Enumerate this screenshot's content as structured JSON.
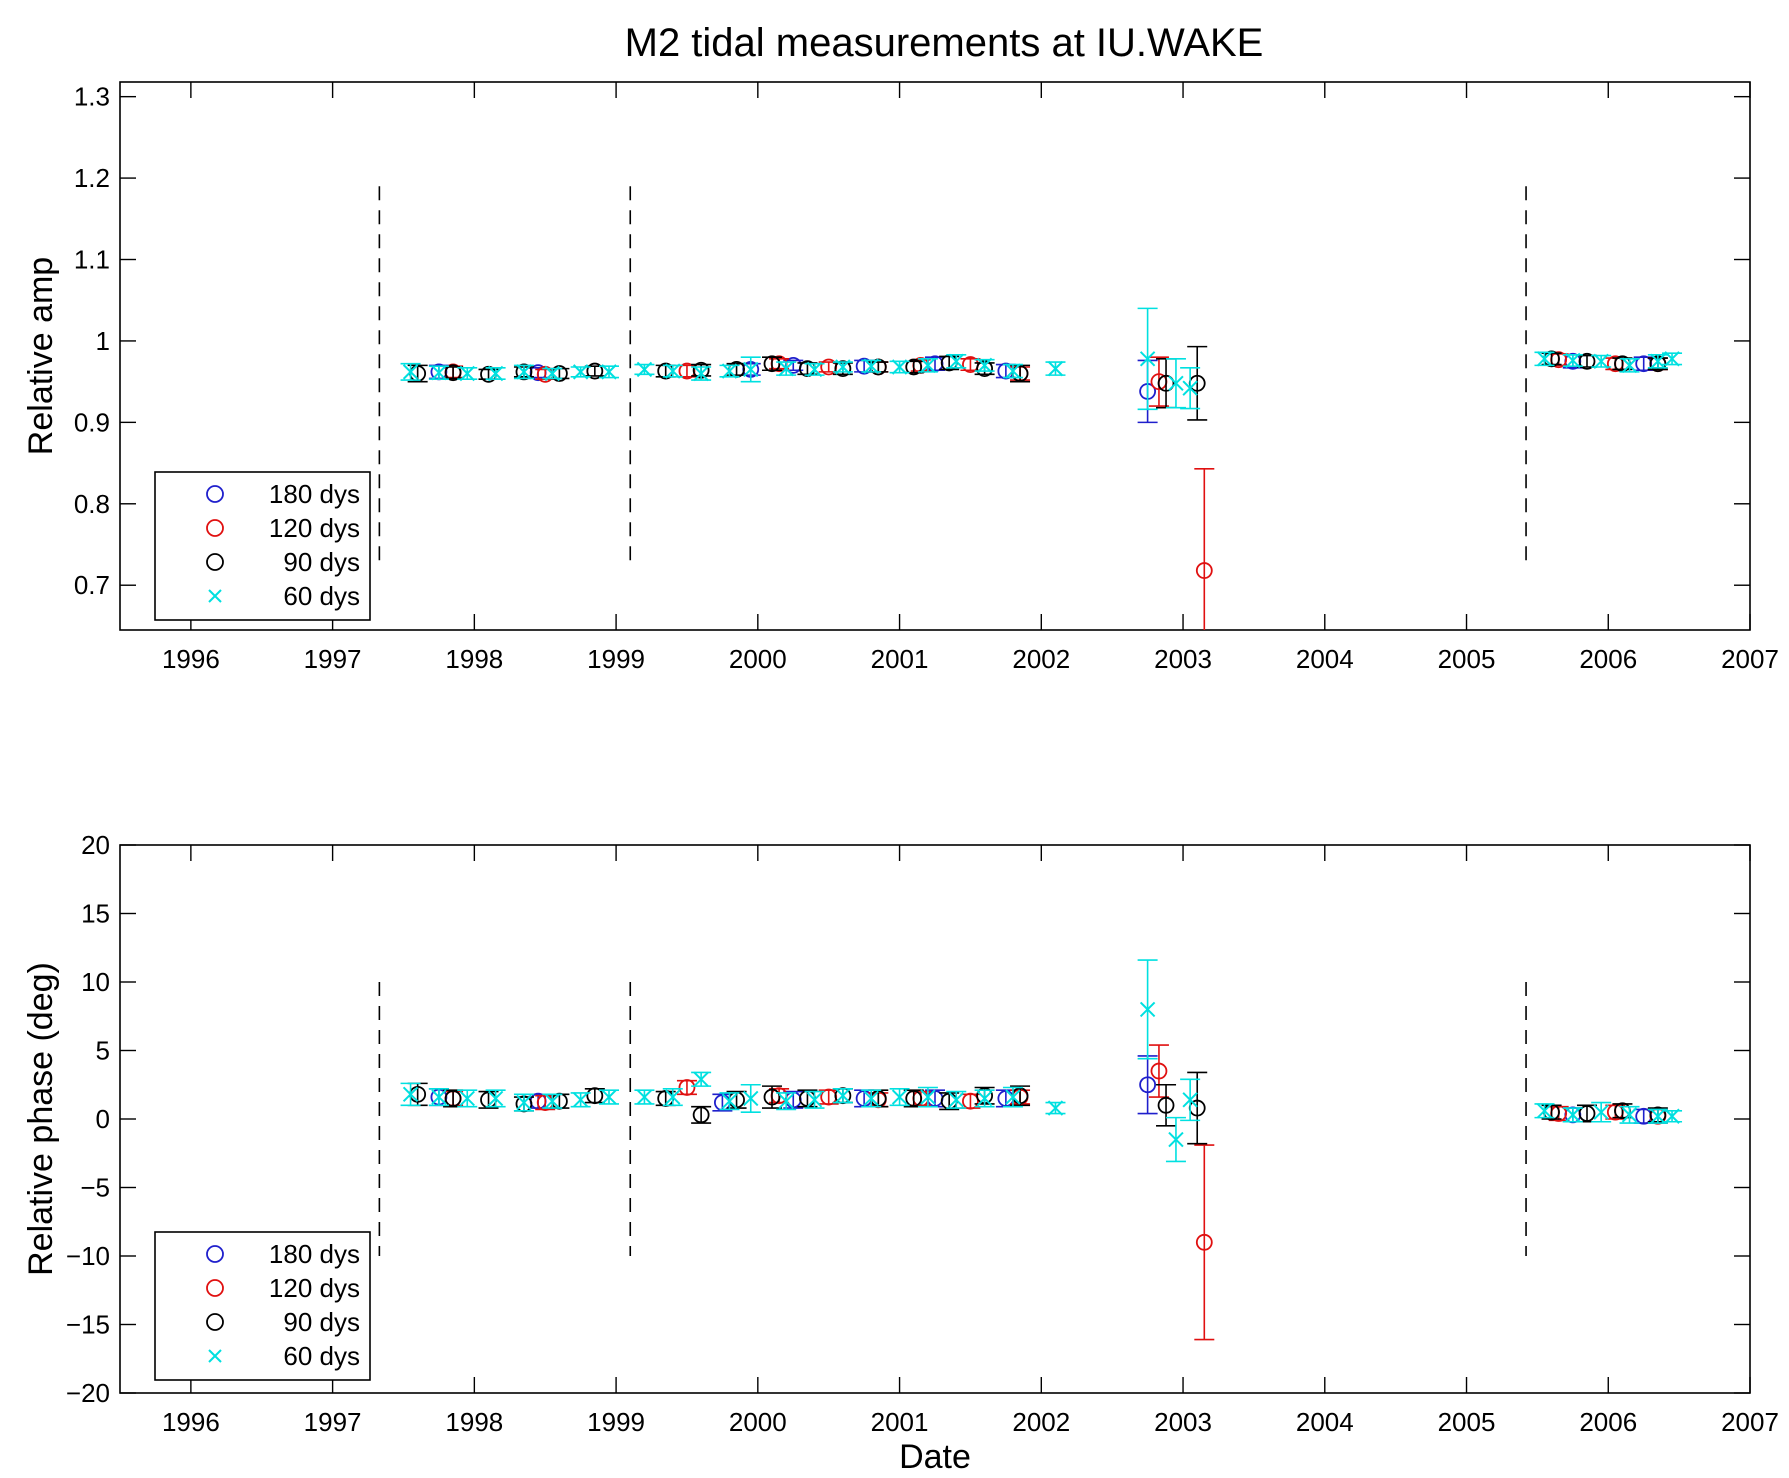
{
  "figure_title": "M2 tidal measurements at IU.WAKE",
  "chart_data": [
    {
      "type": "scatter",
      "title": "M2 tidal measurements at IU.WAKE",
      "xlabel": "",
      "ylabel": "Relative amp",
      "xlim": [
        1995.5,
        2007
      ],
      "ylim": [
        0.645,
        1.318
      ],
      "xticks": [
        1996,
        1997,
        1998,
        1999,
        2000,
        2001,
        2002,
        2003,
        2004,
        2005,
        2006,
        2007
      ],
      "xticklabels": [
        "1996",
        "1997",
        "1998",
        "1999",
        "2000",
        "2001",
        "2002",
        "2003",
        "2004",
        "2005",
        "2006",
        "2007"
      ],
      "yticks": [
        0.7,
        0.8,
        0.9,
        1.0,
        1.1,
        1.2,
        1.3
      ],
      "yticklabels": [
        "0.7",
        "0.8",
        "0.9",
        "1",
        "1.1",
        "1.2",
        "1.3"
      ],
      "grid": false,
      "legend_position": "bottom-left",
      "vlines": [
        {
          "x": 1997.33,
          "y": [
            0.72,
            1.19
          ],
          "style": "dashed"
        },
        {
          "x": 1999.1,
          "y": [
            0.72,
            1.19
          ],
          "style": "dashed"
        },
        {
          "x": 2005.42,
          "y": [
            0.72,
            1.19
          ],
          "style": "dashed"
        }
      ],
      "series": [
        {
          "name": "180 dys",
          "color": "#1f1fcc",
          "marker": "circle",
          "points": [
            [
              1997.75,
              0.962,
              0.008
            ],
            [
              1998.45,
              0.961,
              0.006
            ],
            [
              1999.95,
              0.965,
              0.007
            ],
            [
              2000.25,
              0.97,
              0.006
            ],
            [
              2000.75,
              0.969,
              0.007
            ],
            [
              2001.25,
              0.972,
              0.008
            ],
            [
              2001.75,
              0.963,
              0.008
            ],
            [
              2002.75,
              0.938,
              0.038
            ],
            [
              2005.75,
              0.975,
              0.008
            ],
            [
              2006.25,
              0.972,
              0.008
            ]
          ]
        },
        {
          "name": "120 dys",
          "color": "#e01010",
          "marker": "circle",
          "points": [
            [
              1997.85,
              0.962,
              0.007
            ],
            [
              1998.5,
              0.959,
              0.006
            ],
            [
              1999.5,
              0.963,
              0.007
            ],
            [
              2000.15,
              0.972,
              0.006
            ],
            [
              2000.5,
              0.968,
              0.006
            ],
            [
              2000.85,
              0.968,
              0.006
            ],
            [
              2001.15,
              0.97,
              0.007
            ],
            [
              2001.5,
              0.971,
              0.007
            ],
            [
              2001.85,
              0.96,
              0.008
            ],
            [
              2002.83,
              0.95,
              0.03
            ],
            [
              2003.15,
              0.718,
              0.125
            ],
            [
              2005.65,
              0.977,
              0.007
            ],
            [
              2006.05,
              0.972,
              0.007
            ],
            [
              2006.35,
              0.972,
              0.007
            ]
          ]
        },
        {
          "name": "90 dys",
          "color": "#000000",
          "marker": "circle",
          "points": [
            [
              1997.6,
              0.96,
              0.01
            ],
            [
              1997.85,
              0.961,
              0.007
            ],
            [
              1998.1,
              0.959,
              0.006
            ],
            [
              1998.35,
              0.962,
              0.006
            ],
            [
              1998.6,
              0.96,
              0.006
            ],
            [
              1998.85,
              0.963,
              0.006
            ],
            [
              1999.35,
              0.963,
              0.007
            ],
            [
              1999.6,
              0.964,
              0.007
            ],
            [
              1999.85,
              0.965,
              0.007
            ],
            [
              2000.1,
              0.972,
              0.008
            ],
            [
              2000.35,
              0.966,
              0.007
            ],
            [
              2000.6,
              0.966,
              0.007
            ],
            [
              2000.85,
              0.968,
              0.006
            ],
            [
              2001.1,
              0.968,
              0.007
            ],
            [
              2001.35,
              0.973,
              0.008
            ],
            [
              2001.6,
              0.966,
              0.007
            ],
            [
              2001.85,
              0.96,
              0.01
            ],
            [
              2002.88,
              0.948,
              0.03
            ],
            [
              2003.1,
              0.948,
              0.045
            ],
            [
              2005.6,
              0.978,
              0.007
            ],
            [
              2005.85,
              0.975,
              0.007
            ],
            [
              2006.1,
              0.972,
              0.007
            ],
            [
              2006.35,
              0.972,
              0.007
            ]
          ]
        },
        {
          "name": "60 dys",
          "color": "#00e0e0",
          "marker": "x",
          "points": [
            [
              1997.55,
              0.962,
              0.01
            ],
            [
              1997.75,
              0.961,
              0.008
            ],
            [
              1997.95,
              0.96,
              0.007
            ],
            [
              1998.15,
              0.96,
              0.007
            ],
            [
              1998.35,
              0.962,
              0.008
            ],
            [
              1998.55,
              0.96,
              0.006
            ],
            [
              1998.75,
              0.962,
              0.006
            ],
            [
              1998.95,
              0.962,
              0.007
            ],
            [
              1999.2,
              0.965,
              0.006
            ],
            [
              1999.4,
              0.963,
              0.007
            ],
            [
              1999.6,
              0.96,
              0.008
            ],
            [
              1999.8,
              0.963,
              0.007
            ],
            [
              1999.95,
              0.965,
              0.015
            ],
            [
              2000.2,
              0.966,
              0.008
            ],
            [
              2000.4,
              0.965,
              0.007
            ],
            [
              2000.6,
              0.968,
              0.006
            ],
            [
              2000.8,
              0.969,
              0.007
            ],
            [
              2001.0,
              0.968,
              0.007
            ],
            [
              2001.2,
              0.97,
              0.008
            ],
            [
              2001.4,
              0.975,
              0.008
            ],
            [
              2001.6,
              0.97,
              0.007
            ],
            [
              2001.8,
              0.963,
              0.008
            ],
            [
              2002.1,
              0.966,
              0.008
            ],
            [
              2002.75,
              0.978,
              0.062
            ],
            [
              2002.95,
              0.948,
              0.03
            ],
            [
              2003.05,
              0.942,
              0.025
            ],
            [
              2005.55,
              0.978,
              0.008
            ],
            [
              2005.75,
              0.976,
              0.007
            ],
            [
              2005.95,
              0.975,
              0.007
            ],
            [
              2006.15,
              0.97,
              0.008
            ],
            [
              2006.35,
              0.975,
              0.008
            ],
            [
              2006.45,
              0.978,
              0.007
            ]
          ]
        }
      ]
    },
    {
      "type": "scatter",
      "title": "",
      "xlabel": "Date",
      "ylabel": "Relative phase (deg)",
      "xlim": [
        1995.5,
        2007
      ],
      "ylim": [
        -20,
        20
      ],
      "xticks": [
        1996,
        1997,
        1998,
        1999,
        2000,
        2001,
        2002,
        2003,
        2004,
        2005,
        2006,
        2007
      ],
      "xticklabels": [
        "1996",
        "1997",
        "1998",
        "1999",
        "2000",
        "2001",
        "2002",
        "2003",
        "2004",
        "2005",
        "2006",
        "2007"
      ],
      "yticks": [
        -20,
        -15,
        -10,
        -5,
        0,
        5,
        10,
        15,
        20
      ],
      "yticklabels": [
        "−20",
        "−15",
        "−10",
        "−5",
        "0",
        "5",
        "10",
        "15",
        "20"
      ],
      "grid": false,
      "legend_position": "bottom-left",
      "vlines": [
        {
          "x": 1997.33,
          "y": [
            -10,
            10
          ],
          "style": "dashed"
        },
        {
          "x": 1999.1,
          "y": [
            -10,
            10
          ],
          "style": "dashed"
        },
        {
          "x": 2005.42,
          "y": [
            -10,
            10
          ],
          "style": "dashed"
        }
      ],
      "series": [
        {
          "name": "180 dys",
          "color": "#1f1fcc",
          "marker": "circle",
          "points": [
            [
              1997.75,
              1.6,
              0.6
            ],
            [
              1998.45,
              1.3,
              0.5
            ],
            [
              1999.75,
              1.2,
              0.6
            ],
            [
              2000.25,
              1.4,
              0.6
            ],
            [
              2000.75,
              1.5,
              0.6
            ],
            [
              2001.25,
              1.5,
              0.6
            ],
            [
              2001.75,
              1.5,
              0.6
            ],
            [
              2002.75,
              2.5,
              2.1
            ],
            [
              2005.75,
              0.3,
              0.5
            ],
            [
              2006.25,
              0.2,
              0.5
            ]
          ]
        },
        {
          "name": "120 dys",
          "color": "#e01010",
          "marker": "circle",
          "points": [
            [
              1997.85,
              1.5,
              0.5
            ],
            [
              1998.5,
              1.2,
              0.5
            ],
            [
              1999.5,
              2.3,
              0.5
            ],
            [
              2000.15,
              1.7,
              0.5
            ],
            [
              2000.5,
              1.6,
              0.5
            ],
            [
              2000.85,
              1.4,
              0.5
            ],
            [
              2001.15,
              1.5,
              0.5
            ],
            [
              2001.5,
              1.3,
              0.5
            ],
            [
              2001.85,
              1.6,
              0.5
            ],
            [
              2002.83,
              3.5,
              1.9
            ],
            [
              2003.15,
              -9.0,
              7.1
            ],
            [
              2005.65,
              0.4,
              0.5
            ],
            [
              2006.05,
              0.5,
              0.5
            ],
            [
              2006.35,
              0.2,
              0.5
            ]
          ]
        },
        {
          "name": "90 dys",
          "color": "#000000",
          "marker": "circle",
          "points": [
            [
              1997.6,
              1.8,
              0.8
            ],
            [
              1997.85,
              1.5,
              0.6
            ],
            [
              1998.1,
              1.4,
              0.6
            ],
            [
              1998.35,
              1.1,
              0.5
            ],
            [
              1998.6,
              1.3,
              0.5
            ],
            [
              1998.85,
              1.7,
              0.5
            ],
            [
              1999.35,
              1.5,
              0.5
            ],
            [
              1999.6,
              0.3,
              0.6
            ],
            [
              1999.85,
              1.4,
              0.6
            ],
            [
              2000.1,
              1.6,
              0.8
            ],
            [
              2000.35,
              1.5,
              0.6
            ],
            [
              2000.6,
              1.7,
              0.5
            ],
            [
              2000.85,
              1.5,
              0.6
            ],
            [
              2001.1,
              1.5,
              0.6
            ],
            [
              2001.35,
              1.3,
              0.6
            ],
            [
              2001.6,
              1.7,
              0.6
            ],
            [
              2001.85,
              1.7,
              0.7
            ],
            [
              2002.88,
              1.0,
              1.5
            ],
            [
              2003.1,
              0.8,
              2.6
            ],
            [
              2005.6,
              0.5,
              0.5
            ],
            [
              2005.85,
              0.4,
              0.6
            ],
            [
              2006.1,
              0.6,
              0.5
            ],
            [
              2006.35,
              0.3,
              0.5
            ]
          ]
        },
        {
          "name": "60 dys",
          "color": "#00e0e0",
          "marker": "x",
          "points": [
            [
              1997.55,
              1.8,
              0.8
            ],
            [
              1997.75,
              1.6,
              0.6
            ],
            [
              1997.95,
              1.5,
              0.6
            ],
            [
              1998.15,
              1.5,
              0.6
            ],
            [
              1998.35,
              1.2,
              0.6
            ],
            [
              1998.55,
              1.3,
              0.5
            ],
            [
              1998.75,
              1.4,
              0.5
            ],
            [
              1998.95,
              1.6,
              0.5
            ],
            [
              1999.2,
              1.6,
              0.5
            ],
            [
              1999.4,
              1.6,
              0.6
            ],
            [
              1999.6,
              2.9,
              0.5
            ],
            [
              1999.8,
              1.3,
              0.6
            ],
            [
              1999.95,
              1.5,
              1.0
            ],
            [
              2000.2,
              1.3,
              0.6
            ],
            [
              2000.4,
              1.4,
              0.6
            ],
            [
              2000.6,
              1.7,
              0.5
            ],
            [
              2000.8,
              1.5,
              0.6
            ],
            [
              2001.0,
              1.6,
              0.6
            ],
            [
              2001.2,
              1.6,
              0.7
            ],
            [
              2001.4,
              1.4,
              0.6
            ],
            [
              2001.6,
              1.5,
              0.6
            ],
            [
              2001.8,
              1.6,
              0.7
            ],
            [
              2002.1,
              0.8,
              0.4
            ],
            [
              2002.75,
              8.0,
              3.6
            ],
            [
              2002.95,
              -1.5,
              1.6
            ],
            [
              2003.05,
              1.4,
              1.5
            ],
            [
              2005.55,
              0.6,
              0.5
            ],
            [
              2005.75,
              0.3,
              0.5
            ],
            [
              2005.95,
              0.5,
              0.7
            ],
            [
              2006.15,
              0.3,
              0.6
            ],
            [
              2006.35,
              0.2,
              0.5
            ],
            [
              2006.45,
              0.2,
              0.4
            ]
          ]
        }
      ]
    }
  ]
}
